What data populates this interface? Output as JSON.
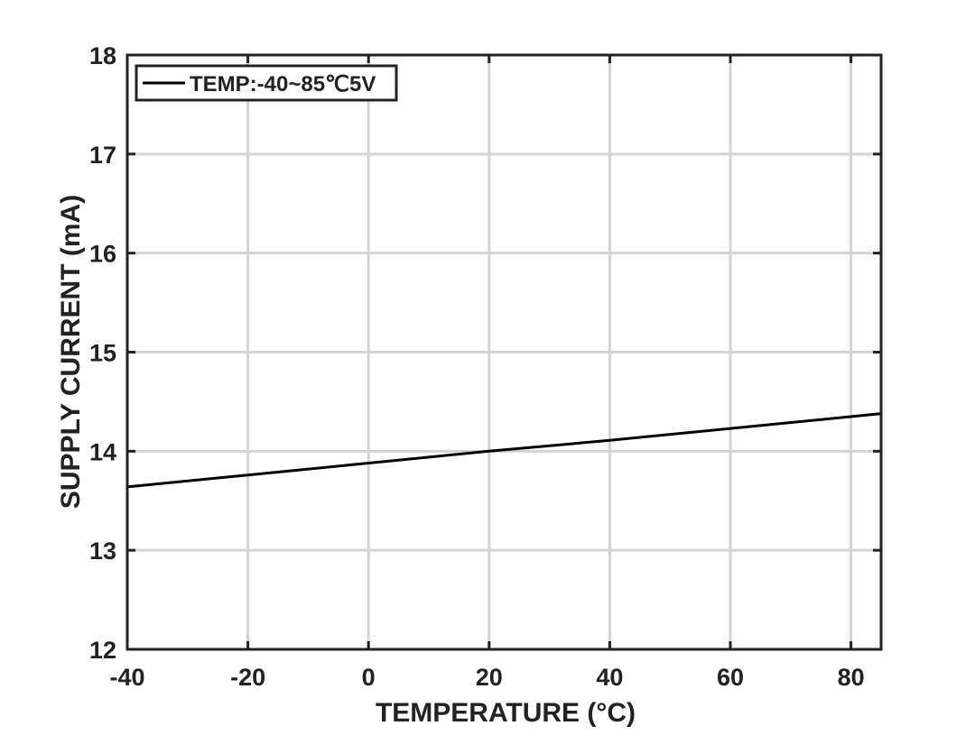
{
  "chart_data": {
    "type": "line",
    "xlabel": "TEMPERATURE (°C)",
    "ylabel": "SUPPLY CURRENT (mA)",
    "xlim": [
      -40,
      85
    ],
    "ylim": [
      12,
      18
    ],
    "x_ticks": [
      -40,
      -20,
      0,
      20,
      40,
      60,
      80
    ],
    "y_ticks": [
      12,
      13,
      14,
      15,
      16,
      17,
      18
    ],
    "grid": true,
    "legend_position": "top-left",
    "series": [
      {
        "name": "TEMP:-40~85℃5V",
        "color": "#000000",
        "x": [
          -40,
          -20,
          0,
          20,
          40,
          60,
          85
        ],
        "y": [
          13.64,
          13.76,
          13.88,
          14.0,
          14.11,
          14.23,
          14.38
        ]
      }
    ]
  },
  "colors": {
    "grid": "#d4d4d4",
    "axis": "#222222",
    "line": "#000000"
  }
}
